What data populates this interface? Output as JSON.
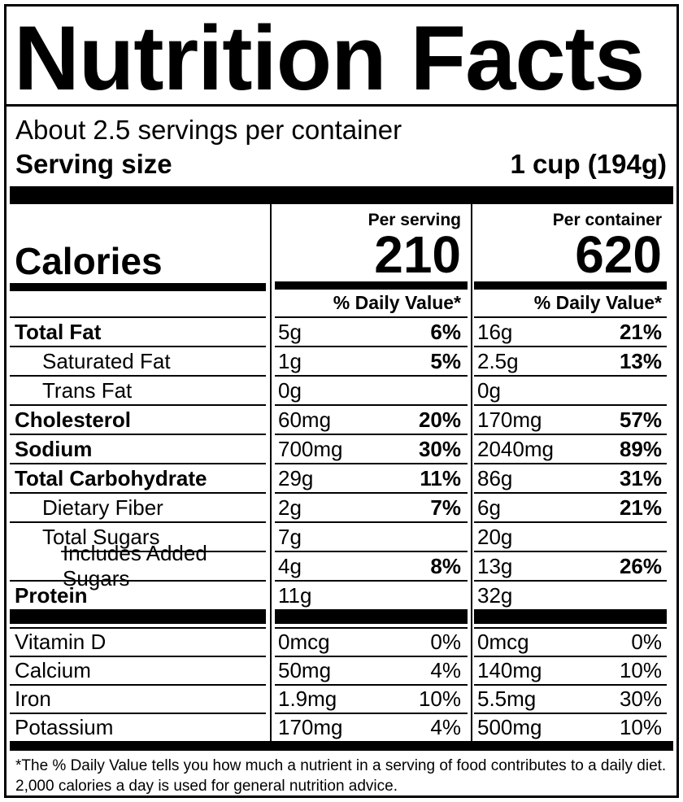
{
  "label": {
    "title": "Nutrition Facts",
    "servings_per_container": "About 2.5 servings per container",
    "serving_size": {
      "label": "Serving size",
      "value": "1 cup (194g)"
    },
    "calories_label": "Calories",
    "columns": {
      "serving": {
        "header": "Per serving",
        "calories": "210",
        "dv_header": "% Daily Value*"
      },
      "container": {
        "header": "Per container",
        "calories": "620",
        "dv_header": "% Daily Value*"
      }
    },
    "nutrients": [
      {
        "name": "Total Fat",
        "serving_amount": "5g",
        "serving_dv": "6%",
        "container_amount": "16g",
        "container_dv": "21%"
      },
      {
        "name": "Saturated Fat",
        "serving_amount": "1g",
        "serving_dv": "5%",
        "container_amount": "2.5g",
        "container_dv": "13%"
      },
      {
        "name": "Trans Fat",
        "serving_amount": "0g",
        "serving_dv": "",
        "container_amount": "0g",
        "container_dv": ""
      },
      {
        "name": "Cholesterol",
        "serving_amount": "60mg",
        "serving_dv": "20%",
        "container_amount": "170mg",
        "container_dv": "57%"
      },
      {
        "name": "Sodium",
        "serving_amount": "700mg",
        "serving_dv": "30%",
        "container_amount": "2040mg",
        "container_dv": "89%"
      },
      {
        "name": "Total Carbohydrate",
        "serving_amount": "29g",
        "serving_dv": "11%",
        "container_amount": "86g",
        "container_dv": "31%"
      },
      {
        "name": "Dietary Fiber",
        "serving_amount": "2g",
        "serving_dv": "7%",
        "container_amount": "6g",
        "container_dv": "21%"
      },
      {
        "name": "Total Sugars",
        "serving_amount": "7g",
        "serving_dv": "",
        "container_amount": "20g",
        "container_dv": ""
      },
      {
        "name": "Includes Added Sugars",
        "serving_amount": "4g",
        "serving_dv": "8%",
        "container_amount": "13g",
        "container_dv": "26%"
      },
      {
        "name": "Protein",
        "serving_amount": "11g",
        "serving_dv": "",
        "container_amount": "32g",
        "container_dv": ""
      }
    ],
    "vitamins": [
      {
        "name": "Vitamin D",
        "serving_amount": "0mcg",
        "serving_dv": "0%",
        "container_amount": "0mcg",
        "container_dv": "0%"
      },
      {
        "name": "Calcium",
        "serving_amount": "50mg",
        "serving_dv": "4%",
        "container_amount": "140mg",
        "container_dv": "10%"
      },
      {
        "name": "Iron",
        "serving_amount": "1.9mg",
        "serving_dv": "10%",
        "container_amount": "5.5mg",
        "container_dv": "30%"
      },
      {
        "name": "Potassium",
        "serving_amount": "170mg",
        "serving_dv": "4%",
        "container_amount": "500mg",
        "container_dv": "10%"
      }
    ],
    "footnote": {
      "line1": "*The % Daily Value tells you how much a nutrient in a serving of food contributes to a daily diet.",
      "line2": "2,000 calories a day is used for general nutrition advice."
    },
    "colors": {
      "ink": "#000000",
      "paper": "#ffffff"
    }
  }
}
